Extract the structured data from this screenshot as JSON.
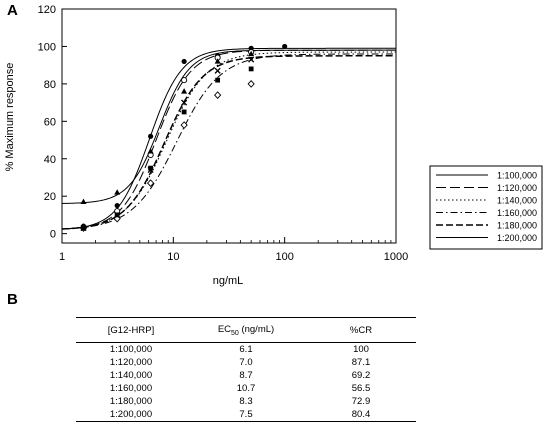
{
  "panel_labels": {
    "a": "A",
    "b": "B"
  },
  "chart_data": {
    "type": "line",
    "xlabel": "ng/mL",
    "ylabel": "% Maximum response",
    "xscale": "log",
    "xlim": [
      1,
      1000
    ],
    "ylim": [
      -5,
      120
    ],
    "x_ticks": [
      "1",
      "10",
      "100",
      "1000"
    ],
    "y_ticks": [
      "0",
      "20",
      "40",
      "60",
      "80",
      "100",
      "120"
    ],
    "grid": false,
    "legend_position": "right",
    "series": [
      {
        "name": "1:100,000",
        "dash": "solid",
        "marker": "circle-filled",
        "color": "#000000",
        "fit": {
          "bottom": 2,
          "top": 99,
          "ec50": 6.1,
          "hill": 3.0
        },
        "points": [
          [
            1.56,
            4
          ],
          [
            3.13,
            15
          ],
          [
            6.25,
            52
          ],
          [
            12.5,
            92
          ],
          [
            25,
            95
          ],
          [
            50,
            99
          ],
          [
            100,
            100
          ]
        ]
      },
      {
        "name": "1:120,000",
        "dash": "long-dash",
        "marker": "circle-open",
        "color": "#000000",
        "fit": {
          "bottom": 2,
          "top": 98,
          "ec50": 7.0,
          "hill": 2.8
        },
        "points": [
          [
            1.56,
            3
          ],
          [
            3.13,
            12
          ],
          [
            6.25,
            42
          ],
          [
            12.5,
            82
          ],
          [
            25,
            94
          ],
          [
            50,
            97
          ]
        ]
      },
      {
        "name": "1:140,000",
        "dash": "dotted",
        "marker": "x",
        "color": "#000000",
        "fit": {
          "bottom": 2,
          "top": 97,
          "ec50": 8.7,
          "hill": 2.4
        },
        "points": [
          [
            1.56,
            3
          ],
          [
            3.13,
            10
          ],
          [
            6.25,
            34
          ],
          [
            12.5,
            70
          ],
          [
            25,
            87
          ],
          [
            50,
            93
          ]
        ]
      },
      {
        "name": "1:160,000",
        "dash": "dash-dot",
        "marker": "diamond-open",
        "color": "#000000",
        "fit": {
          "bottom": 2,
          "top": 96,
          "ec50": 10.7,
          "hill": 2.2
        },
        "points": [
          [
            1.56,
            3
          ],
          [
            3.13,
            8
          ],
          [
            6.25,
            27
          ],
          [
            12.5,
            58
          ],
          [
            25,
            74
          ],
          [
            50,
            80
          ]
        ]
      },
      {
        "name": "1:180,000",
        "dash": "dash-heavy",
        "marker": "square-filled",
        "color": "#000000",
        "fit": {
          "bottom": 2,
          "top": 95,
          "ec50": 8.3,
          "hill": 2.5
        },
        "points": [
          [
            1.56,
            3
          ],
          [
            3.13,
            10
          ],
          [
            6.25,
            35
          ],
          [
            12.5,
            65
          ],
          [
            25,
            82
          ],
          [
            50,
            88
          ]
        ]
      },
      {
        "name": "1:200,000",
        "dash": "solid",
        "marker": "triangle-filled",
        "color": "#000000",
        "fit": {
          "bottom": 16,
          "top": 98,
          "ec50": 7.5,
          "hill": 3.2
        },
        "points": [
          [
            1.56,
            17
          ],
          [
            3.13,
            22
          ],
          [
            6.25,
            44
          ],
          [
            12.5,
            76
          ],
          [
            25,
            92
          ],
          [
            50,
            96
          ]
        ]
      }
    ]
  },
  "table": {
    "headers": [
      "[G12-HRP]",
      "EC50 (ng/mL)",
      "%CR"
    ],
    "rows": [
      [
        "1:100,000",
        "6.1",
        "100"
      ],
      [
        "1:120,000",
        "7.0",
        "87.1"
      ],
      [
        "1:140,000",
        "8.7",
        "69.2"
      ],
      [
        "1:160,000",
        "10.7",
        "56.5"
      ],
      [
        "1:180,000",
        "8.3",
        "72.9"
      ],
      [
        "1:200,000",
        "7.5",
        "80.4"
      ]
    ]
  }
}
